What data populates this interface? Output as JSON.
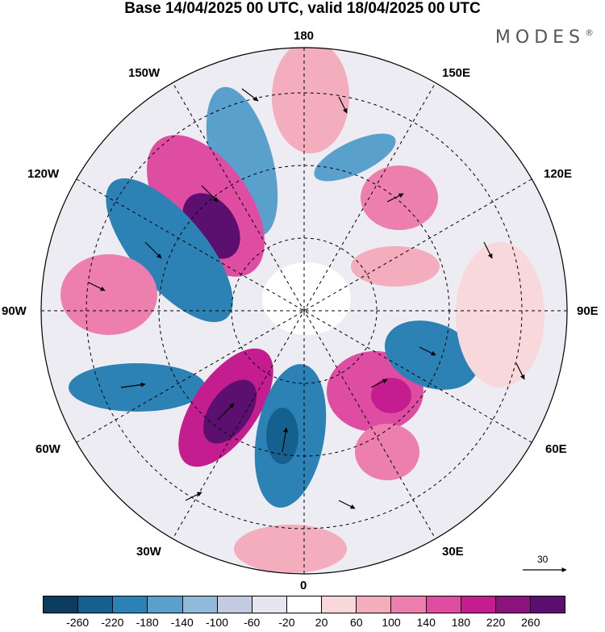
{
  "title": "Base 14/04/2025 00 UTC, valid 18/04/2025 00 UTC",
  "brand": "MODES",
  "brand_mark": "®",
  "longitude_labels": {
    "top": "180",
    "top_left": "150W",
    "top_right": "150E",
    "upper_left": "120W",
    "upper_right": "120E",
    "left": "90W",
    "right": "90E",
    "lower_left": "60W",
    "lower_right": "60E",
    "bottom_left": "30W",
    "bottom_right": "30E",
    "bottom": "0"
  },
  "vector_scale_label": "30",
  "colorbar": {
    "labels": [
      "-260",
      "-220",
      "-180",
      "-140",
      "-100",
      "-60",
      "-20",
      "20",
      "60",
      "100",
      "140",
      "180",
      "220",
      "260"
    ],
    "colors": [
      "#0b3d5e",
      "#16608f",
      "#2c82b5",
      "#5aa0cc",
      "#90b9da",
      "#c3cbe3",
      "#e6e6f1",
      "#ffffff",
      "#f9d8db",
      "#f3adbd",
      "#ec7fae",
      "#df4da2",
      "#c41d8f",
      "#8a137d",
      "#5b0f6e"
    ]
  },
  "anomaly_blobs": [
    {
      "name": "blob-150w-positive",
      "value": 260
    },
    {
      "name": "blob-120w-negative",
      "value": -200
    },
    {
      "name": "blob-165w-negative",
      "value": -180
    },
    {
      "name": "blob-90w-positive",
      "value": 160
    },
    {
      "name": "blob-75w-negative",
      "value": -180
    },
    {
      "name": "blob-45w-positive",
      "value": 260
    },
    {
      "name": "blob-10w-negative",
      "value": -220
    },
    {
      "name": "blob-30e-positive",
      "value": 200
    },
    {
      "name": "blob-45e-positive",
      "value": 160
    },
    {
      "name": "blob-75e-negative",
      "value": -180
    },
    {
      "name": "blob-130e-positive",
      "value": 140
    },
    {
      "name": "blob-160e-negative",
      "value": -140
    },
    {
      "name": "blob-180-positive",
      "value": 80
    }
  ]
}
